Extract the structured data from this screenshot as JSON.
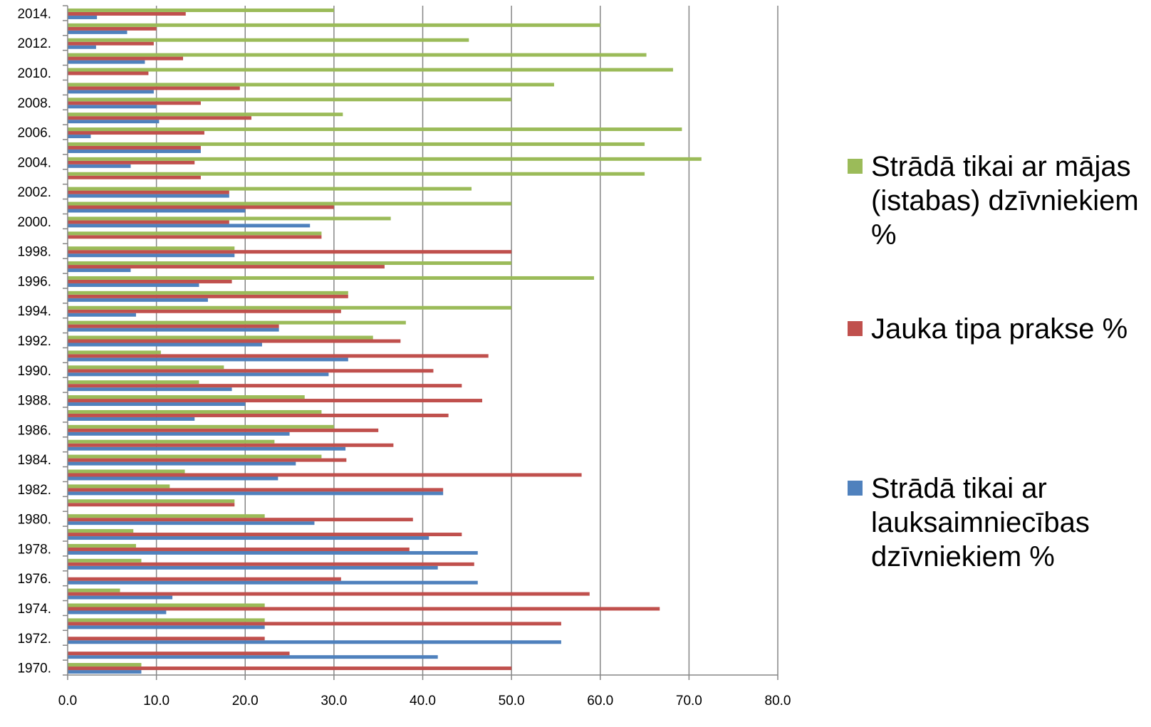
{
  "chart_data": {
    "type": "bar",
    "orientation": "horizontal",
    "x_ticks": [
      "0.0",
      "10.0",
      "20.0",
      "30.0",
      "40.0",
      "50.0",
      "60.0",
      "70.0",
      "80.0"
    ],
    "xlim": [
      0,
      80
    ],
    "grid": "vertical",
    "legend_position": "right",
    "categories": [
      "1970.",
      "1971.",
      "1972.",
      "1973.",
      "1974.",
      "1975.",
      "1976.",
      "1977.",
      "1978.",
      "1979.",
      "1980.",
      "1981.",
      "1982.",
      "1983.",
      "1984.",
      "1985.",
      "1986.",
      "1987.",
      "1988.",
      "1989.",
      "1990.",
      "1991.",
      "1992.",
      "1993.",
      "1994.",
      "1995.",
      "1996.",
      "1997.",
      "1998.",
      "1999.",
      "2000.",
      "2001.",
      "2002.",
      "2003.",
      "2004.",
      "2005.",
      "2006.",
      "2007.",
      "2008.",
      "2009.",
      "2010.",
      "2011.",
      "2012.",
      "2013.",
      "2014."
    ],
    "category_labels": [
      "1970.",
      "",
      "1972.",
      "",
      "1974.",
      "",
      "1976.",
      "",
      "1978.",
      "",
      "1980.",
      "",
      "1982.",
      "",
      "1984.",
      "",
      "1986.",
      "",
      "1988.",
      "",
      "1990.",
      "",
      "1992.",
      "",
      "1994.",
      "",
      "1996.",
      "",
      "1998.",
      "",
      "2000.",
      "",
      "2002.",
      "",
      "2004.",
      "",
      "2006.",
      "",
      "2008.",
      "",
      "2010.",
      "",
      "2012.",
      "",
      "2014."
    ],
    "series": [
      {
        "name": "Strādā tikai ar lauksaimniecības dzīvniekiem %",
        "color": "#4f81bd",
        "values": [
          8.3,
          41.7,
          55.6,
          22.2,
          11.1,
          11.8,
          46.2,
          41.7,
          46.2,
          40.7,
          27.8,
          0,
          42.3,
          23.7,
          25.7,
          31.3,
          25.0,
          14.3,
          20.0,
          18.5,
          29.4,
          31.6,
          21.9,
          23.8,
          7.7,
          15.8,
          14.8,
          7.1,
          18.8,
          0,
          27.3,
          20.0,
          18.2,
          0,
          7.1,
          15.0,
          2.6,
          10.3,
          10.0,
          9.7,
          0,
          8.7,
          3.2,
          6.7,
          3.3
        ]
      },
      {
        "name": "Jauka tipa prakse %",
        "color": "#c0504d",
        "values": [
          50.0,
          25.0,
          22.2,
          55.6,
          66.7,
          58.8,
          30.8,
          45.8,
          38.5,
          44.4,
          38.9,
          18.8,
          42.3,
          57.9,
          31.4,
          36.7,
          35.0,
          42.9,
          46.7,
          44.4,
          41.2,
          47.4,
          37.5,
          23.8,
          30.8,
          31.6,
          18.5,
          35.7,
          50.0,
          28.6,
          18.2,
          30.0,
          18.2,
          15.0,
          14.3,
          15.0,
          15.4,
          20.7,
          15.0,
          19.4,
          9.1,
          13.0,
          9.7,
          10.0,
          13.3
        ]
      },
      {
        "name": "Strādā tikai ar mājas (istabas) dzīvniekiem %",
        "color": "#9bbb59",
        "values": [
          8.3,
          0,
          0,
          22.2,
          22.2,
          5.9,
          0,
          8.3,
          7.7,
          7.4,
          22.2,
          18.8,
          11.5,
          13.2,
          28.6,
          23.3,
          30.0,
          28.6,
          26.7,
          14.8,
          17.6,
          10.5,
          34.4,
          38.1,
          50.0,
          31.6,
          59.3,
          50.0,
          18.8,
          28.6,
          36.4,
          50.0,
          45.5,
          65.0,
          71.4,
          65.0,
          69.2,
          31.0,
          50.0,
          54.8,
          68.2,
          65.2,
          45.2,
          60.0,
          30.0
        ]
      }
    ]
  },
  "legend": {
    "items": [
      {
        "label": "Strādā tikai ar mājas (istabas) dzīvniekiem %",
        "color": "#9bbb59"
      },
      {
        "label": "Jauka tipa prakse %",
        "color": "#c0504d"
      },
      {
        "label": "Strādā tikai ar lauksaimniecības dzīvniekiem %",
        "color": "#4f81bd"
      }
    ]
  }
}
